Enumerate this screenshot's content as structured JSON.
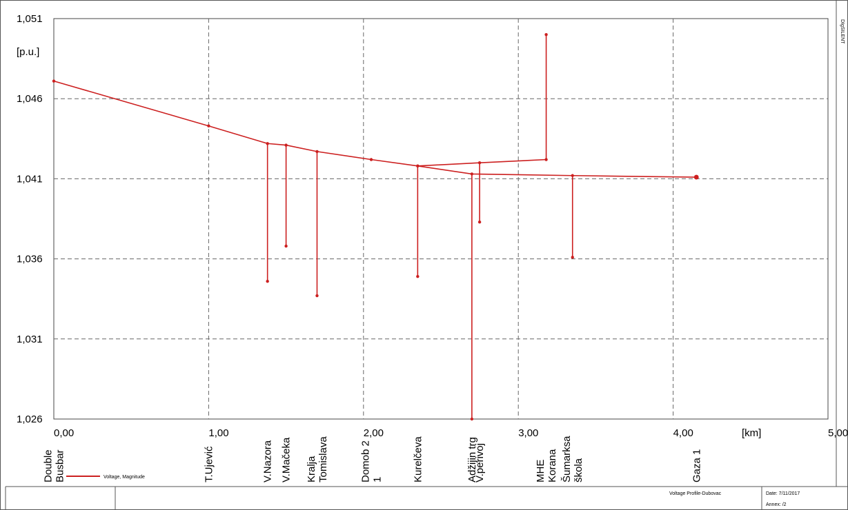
{
  "chart_data": {
    "type": "line",
    "ylabel": "[p.u.]",
    "xunit": "[km]",
    "xlim": [
      0,
      5
    ],
    "ylim": [
      1.026,
      1.051
    ],
    "x_ticks": [
      "0,00",
      "1,00",
      "2,00",
      "3,00",
      "4,00",
      "5,00"
    ],
    "y_ticks": [
      "1,026",
      "1,031",
      "1,036",
      "1,041",
      "1,046",
      "1,051"
    ],
    "grid": true,
    "series": [
      {
        "name": "Voltage, Magnitude",
        "color": "#cc1f1f",
        "main_line": [
          [
            0.0,
            1.0471
          ],
          [
            1.0,
            1.0443
          ],
          [
            1.38,
            1.0432
          ],
          [
            1.5,
            1.0431
          ],
          [
            1.7,
            1.0427
          ],
          [
            2.05,
            1.0422
          ],
          [
            2.35,
            1.0418
          ],
          [
            2.7,
            1.0413
          ],
          [
            3.35,
            1.0412
          ],
          [
            4.15,
            1.0411
          ]
        ],
        "branch_line": [
          [
            2.35,
            1.0418
          ],
          [
            2.75,
            1.042
          ],
          [
            3.18,
            1.0422
          ],
          [
            3.18,
            1.05
          ]
        ],
        "stubs": [
          [
            1.38,
            1.0432,
            1.0346
          ],
          [
            1.5,
            1.0431,
            1.0368
          ],
          [
            1.7,
            1.0427,
            1.0337
          ],
          [
            2.35,
            1.0418,
            1.0349
          ],
          [
            2.7,
            1.0413,
            1.026
          ],
          [
            2.75,
            1.042,
            1.0383
          ],
          [
            3.35,
            1.0412,
            1.0361
          ]
        ]
      }
    ],
    "bus_labels": [
      {
        "x": 0.0,
        "lines": [
          "Double",
          "Busbar"
        ]
      },
      {
        "x": 1.0,
        "lines": [
          "T.Ujević"
        ]
      },
      {
        "x": 1.38,
        "lines": [
          "V.Nazora"
        ]
      },
      {
        "x": 1.5,
        "lines": [
          "V.Mačeka"
        ]
      },
      {
        "x": 1.7,
        "lines": [
          "Kralja",
          "Tomislava"
        ]
      },
      {
        "x": 2.05,
        "lines": [
          "Domob 2",
          "1"
        ]
      },
      {
        "x": 2.35,
        "lines": [
          "Kurelčeva"
        ]
      },
      {
        "x": 2.7,
        "lines": [
          "Adžijin trg"
        ]
      },
      {
        "x": 2.75,
        "lines": [
          "V.perivoj"
        ]
      },
      {
        "x": 3.18,
        "lines": [
          "MHE",
          "Korana"
        ]
      },
      {
        "x": 3.35,
        "lines": [
          "Šumarksa",
          "škola"
        ]
      },
      {
        "x": 4.15,
        "lines": [
          "Gaza 1"
        ]
      }
    ]
  },
  "legend": {
    "label": "Voltage, Magnitude",
    "placement": "bottom-left"
  },
  "footer": {
    "title": "Voltage Profile-Dubovac",
    "date_label": "Date: 7/11/2017",
    "annex_label": "Annex:  /2"
  },
  "side_text": "DIgSILENT"
}
